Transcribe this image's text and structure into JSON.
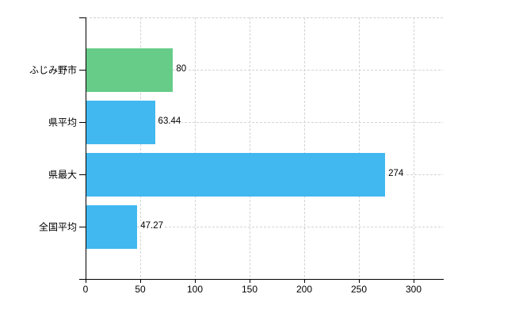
{
  "chart_data": {
    "type": "bar",
    "orientation": "horizontal",
    "title": "",
    "xlabel": "",
    "ylabel": "",
    "categories": [
      "ふじみ野市",
      "県平均",
      "県最大",
      "全国平均"
    ],
    "values": [
      80,
      63.44,
      274,
      47.27
    ],
    "value_labels": [
      "80",
      "63.44",
      "274",
      "47.27"
    ],
    "bar_colors": [
      "#66cc88",
      "#41b8f0",
      "#41b8f0",
      "#41b8f0"
    ],
    "x_ticks": [
      0,
      50,
      100,
      150,
      200,
      250,
      300
    ],
    "xlim": [
      0,
      327
    ],
    "grid": true,
    "legend": false,
    "grid_color": "#d4d4d4",
    "axis_color": "#000000",
    "background_color": "#ffffff",
    "text_color": "#000000"
  }
}
